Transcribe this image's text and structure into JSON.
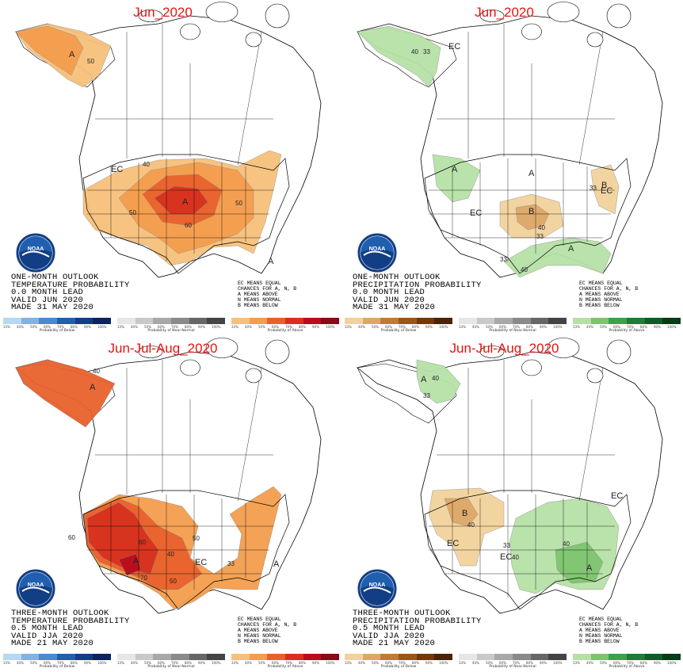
{
  "panels": [
    {
      "title": "Jun_2020",
      "info": [
        "ONE-MONTH OUTLOOK",
        "TEMPERATURE PROBABILITY",
        "0.0 MONTH LEAD",
        "VALID JUN 2020",
        "MADE 31 MAY 2020"
      ],
      "map_labels": [
        "A",
        "50",
        "EC",
        "40",
        "A",
        "50",
        "50",
        "60",
        "A"
      ],
      "legend_caps": [
        "Probability of Below",
        "Probability of Near-Normal",
        "Probability of Above"
      ]
    },
    {
      "title": "Jun_2020",
      "info": [
        "ONE-MONTH OUTLOOK",
        "PRECIPITATION PROBABILITY",
        "0.0 MONTH LEAD",
        "VALID JUN 2020",
        "MADE 31 MAY 2020"
      ],
      "map_labels": [
        "40",
        "33",
        "EC",
        "A",
        "A",
        "EC",
        "EC",
        "B",
        "B",
        "33",
        "40",
        "33",
        "A",
        "33",
        "40"
      ],
      "legend_caps": [
        "Probability of Below",
        "Probability of Near-Normal",
        "Probability of Above"
      ]
    },
    {
      "title": "Jun-Jul-Aug_2020",
      "info": [
        "THREE-MONTH OUTLOOK",
        "TEMPERATURE PROBABILITY",
        "0.5 MONTH LEAD",
        "VALID JJA 2020",
        "MADE 21 MAY 2020"
      ],
      "map_labels": [
        "A",
        "40",
        "60",
        "50",
        "60",
        "A",
        "70",
        "50",
        "EC",
        "33",
        "40",
        "A"
      ],
      "legend_caps": [
        "Probability of Below",
        "Probability of Near-Normal",
        "Probability of Above"
      ]
    },
    {
      "title": "Jun-Jul-Aug_2020",
      "info": [
        "THREE-MONTH OUTLOOK",
        "PRECIPITATION PROBABILITY",
        "0.5 MONTH LEAD",
        "VALID JJA 2020",
        "MADE 21 MAY 2020"
      ],
      "map_labels": [
        "A",
        "40",
        "33",
        "B",
        "40",
        "EC",
        "33",
        "40",
        "EC",
        "40",
        "A",
        "EC"
      ],
      "legend_caps": [
        "Probability of Below",
        "Probability of Near-Normal",
        "Probability of Above"
      ]
    }
  ],
  "legend_key": [
    "EC MEANS EQUAL",
    "CHANCES FOR A, N, B",
    "A MEANS ABOVE",
    "N MEANS NORMAL",
    "B MEANS BELOW"
  ],
  "ticks": [
    "33%",
    "40%",
    "50%",
    "60%",
    "70%",
    "80%",
    "90%",
    "100%"
  ],
  "logo_text": "NOAA",
  "colors": {
    "title": "#e8130f",
    "temp_above": [
      "#f7c07a",
      "#f39d4d",
      "#e8612c",
      "#d7301f",
      "#b70d1c",
      "#8c0a16"
    ],
    "temp_below": [
      "#b7d8f2",
      "#7fb4e3",
      "#4a8bd0",
      "#1f5fae",
      "#123e86",
      "#0b255c"
    ],
    "precip_above": [
      "#b6e0a6",
      "#7dc46f",
      "#3aa34a",
      "#1d7d36",
      "#0f5c26",
      "#073c18"
    ],
    "precip_below": [
      "#f1d29c",
      "#dca868",
      "#c07a34",
      "#9c5616",
      "#73380b",
      "#4c2306"
    ],
    "near_normal": [
      "#e6e6e6",
      "#c9c9c9",
      "#a8a8a8",
      "#8a8a8a",
      "#666666",
      "#444444"
    ]
  }
}
